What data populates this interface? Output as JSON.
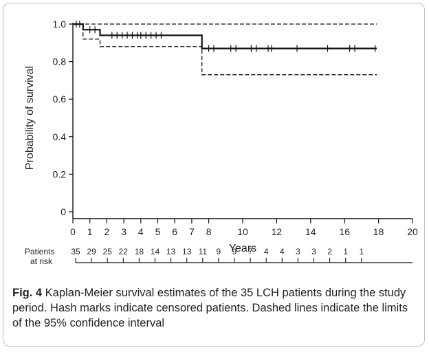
{
  "chart_data": {
    "type": "line",
    "xlabel": "Years",
    "ylabel": "Probability of survival",
    "xlim": [
      0,
      20
    ],
    "ylim": [
      0,
      1.0
    ],
    "x_ticks": [
      0,
      1,
      2,
      3,
      4,
      5,
      6,
      7,
      8,
      10,
      12,
      14,
      16,
      18,
      20
    ],
    "y_ticks": [
      0,
      0.2,
      0.4,
      0.6,
      0.8,
      1.0
    ],
    "y_tick_labels": [
      "0",
      "0.2",
      "0.4",
      "0.6",
      "0.8",
      "1.0"
    ],
    "grid": false,
    "series": [
      {
        "style": "solid",
        "steps": [
          [
            0,
            1.0
          ],
          [
            0.6,
            0.97
          ],
          [
            1.6,
            0.94
          ],
          [
            7.6,
            0.87
          ],
          [
            17.9,
            0.87
          ]
        ],
        "censor_x": [
          0.2,
          0.4,
          1.0,
          1.3,
          2.3,
          2.6,
          2.9,
          3.2,
          3.5,
          3.8,
          4.0,
          4.3,
          4.6,
          4.9,
          5.2,
          8.0,
          8.3,
          9.3,
          9.6,
          10.5,
          10.8,
          11.5,
          11.7,
          13.2,
          15.0,
          16.3,
          16.6,
          17.8
        ]
      },
      {
        "style": "dashed",
        "steps": [
          [
            0,
            1.0
          ],
          [
            17.9,
            1.0
          ]
        ],
        "censor_x": []
      },
      {
        "style": "dashed",
        "steps": [
          [
            0,
            1.0
          ],
          [
            0.6,
            0.92
          ],
          [
            1.6,
            0.88
          ],
          [
            7.6,
            0.73
          ],
          [
            17.9,
            0.73
          ]
        ],
        "censor_x": []
      }
    ],
    "risk_table": {
      "label_line1": "Patients",
      "label_line2": "at risk",
      "x": [
        0,
        1,
        2,
        3,
        4,
        5,
        6,
        7,
        8,
        9,
        10,
        11,
        12,
        13,
        14,
        15,
        16,
        17,
        18
      ],
      "counts": [
        "35",
        "29",
        "25",
        "22",
        "18",
        "14",
        "13",
        "13",
        "11",
        "9",
        "9",
        "7",
        "4",
        "4",
        "3",
        "3",
        "2",
        "1",
        "1"
      ]
    }
  },
  "caption": {
    "label": "Fig. 4",
    "text": " Kaplan-Meier survival estimates of the 35 LCH patients during the study period. Hash marks indicate censored patients. Dashed lines indicate the limits of the 95% confidence interval"
  },
  "colors": {
    "line": "#111111",
    "frame": "#bdbdbd"
  }
}
